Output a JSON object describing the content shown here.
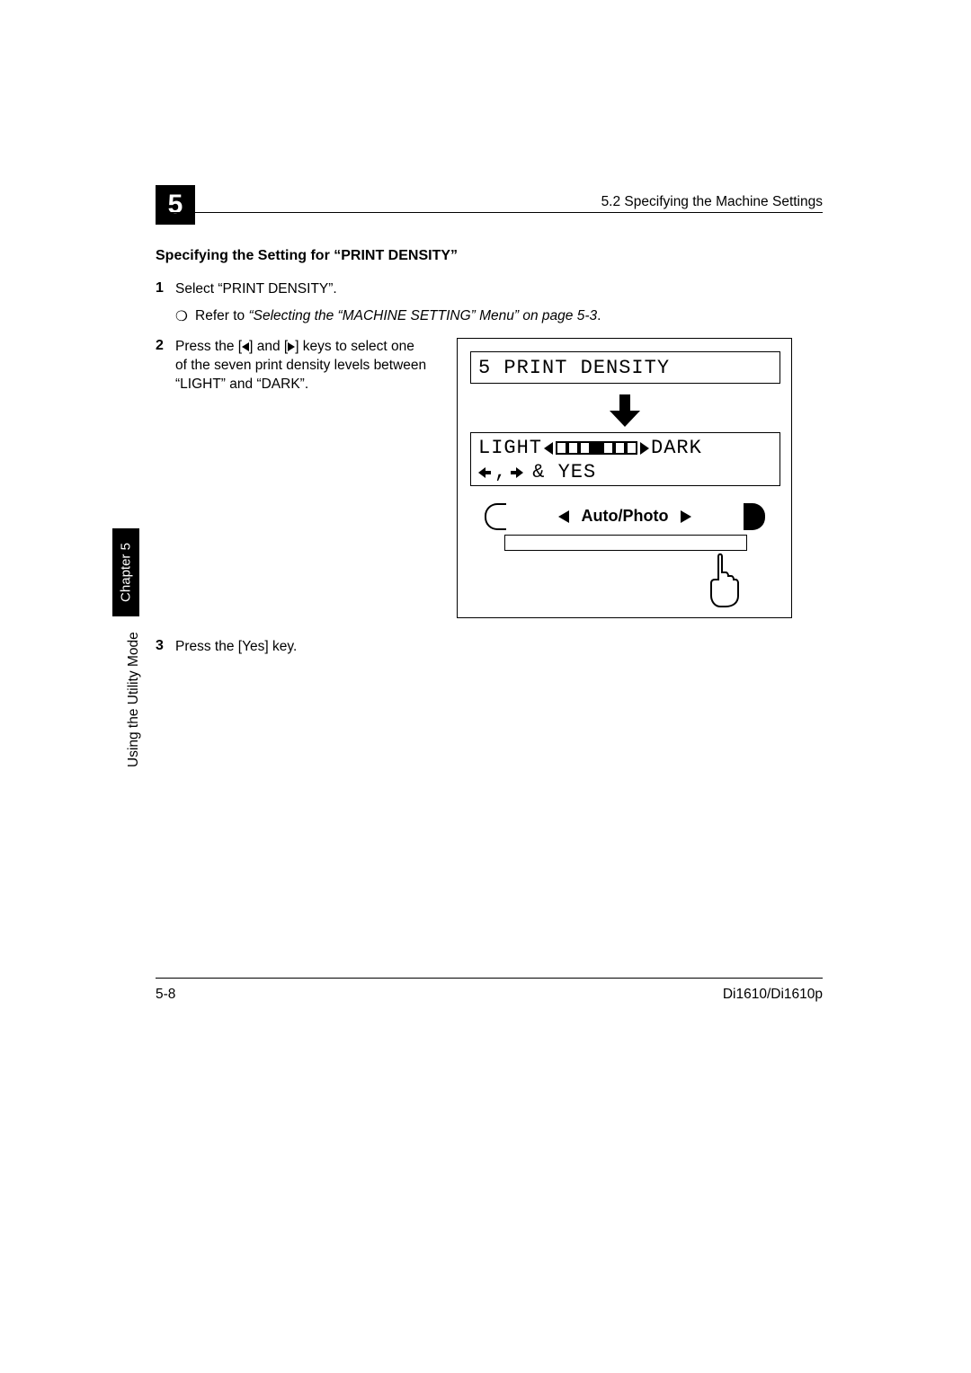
{
  "header": {
    "chapter_number": "5",
    "section_ref": "5.2 Specifying the Machine Settings"
  },
  "section_title": "Specifying the Setting for “PRINT DENSITY”",
  "steps": {
    "s1": {
      "num": "1",
      "text": "Select “PRINT DENSITY”.",
      "sub_bullet": "❍",
      "sub_prefix": "Refer to ",
      "sub_italic": "“Selecting the “MACHINE SETTING” Menu” on page 5-3",
      "sub_suffix": "."
    },
    "s2": {
      "num": "2",
      "text_a": "Press the [",
      "text_b": "] and [",
      "text_c": "] keys to select one of the seven print density levels between “LIGHT” and “DARK”."
    },
    "s3": {
      "num": "3",
      "text": "Press the [Yes] key."
    }
  },
  "lcd": {
    "top_line": "5 PRINT DENSITY",
    "light_label": "LIGHT",
    "dark_label": "DARK",
    "segments": [
      0,
      0,
      0,
      1,
      0,
      0,
      0
    ],
    "yes_text": "& YES",
    "auto_photo": "Auto/Photo"
  },
  "side": {
    "tab_text": "Chapter 5",
    "vert_text": "Using the Utility Mode"
  },
  "footer": {
    "page": "5-8",
    "model": "Di1610/Di1610p"
  },
  "colors": {
    "text": "#000000",
    "bg": "#ffffff"
  }
}
